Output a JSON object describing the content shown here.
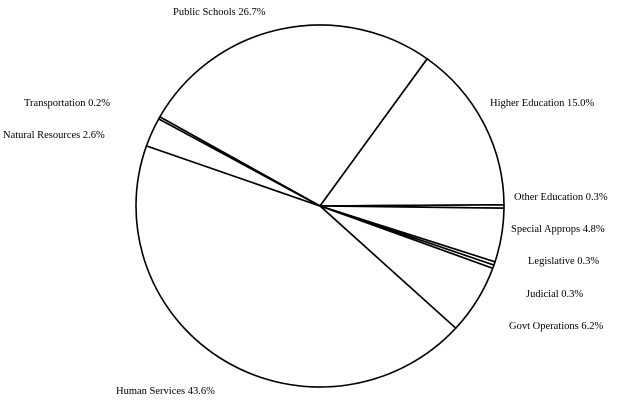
{
  "chart_data": {
    "type": "pie",
    "slices": [
      {
        "label": "Public Schools 26.7%",
        "value": 26.7
      },
      {
        "label": "Higher Education 15.0%",
        "value": 15.0
      },
      {
        "label": "Other Education 0.3%",
        "value": 0.3
      },
      {
        "label": "Special Approps 4.8%",
        "value": 4.8
      },
      {
        "label": "Legislative 0.3%",
        "value": 0.3
      },
      {
        "label": "Judicial 0.3%",
        "value": 0.3
      },
      {
        "label": "Govt Operations 6.2%",
        "value": 6.2
      },
      {
        "label": "Human Services 43.6%",
        "value": 43.6
      },
      {
        "label": "Natural Resources 2.6%",
        "value": 2.6
      },
      {
        "label": "Transportation 0.2%",
        "value": 0.2
      }
    ],
    "colors": {
      "slice_fill": "#ffffff",
      "slice_stroke": "#000000",
      "text": "#000000"
    }
  }
}
